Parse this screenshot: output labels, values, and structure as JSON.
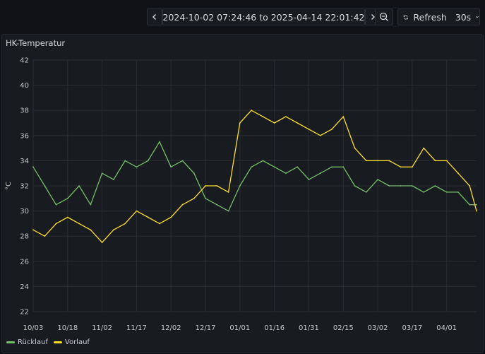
{
  "toolbar": {
    "time_range": "2024-10-02 07:24:46 to 2025-04-14 22:01:42",
    "refresh_label": "Refresh",
    "interval": "30s"
  },
  "panel": {
    "title": "HK-Temperatur"
  },
  "colors": {
    "ruecklauf": "#73bf69",
    "vorlauf": "#fade2a",
    "grid": "#2a2d33",
    "tick": "#c7c7c7"
  },
  "chart_data": {
    "type": "line",
    "title": "HK-Temperatur",
    "xlabel": "",
    "ylabel": "°C",
    "ylim": [
      22,
      42
    ],
    "yticks": [
      "22",
      "24",
      "26",
      "28",
      "30",
      "32",
      "34",
      "36",
      "38",
      "40",
      "42"
    ],
    "xticks": [
      "10/03",
      "10/18",
      "11/02",
      "11/17",
      "12/02",
      "12/17",
      "01/01",
      "01/16",
      "01/31",
      "02/15",
      "03/02",
      "03/17",
      "04/01"
    ],
    "x_domain": [
      "10/03",
      "04/14"
    ],
    "x": [
      "10/03",
      "10/08",
      "10/13",
      "10/18",
      "10/23",
      "10/28",
      "11/02",
      "11/07",
      "11/12",
      "11/17",
      "11/22",
      "11/27",
      "12/02",
      "12/07",
      "12/12",
      "12/17",
      "12/22",
      "12/27",
      "01/01",
      "01/06",
      "01/11",
      "01/16",
      "01/21",
      "01/26",
      "01/31",
      "02/05",
      "02/10",
      "02/15",
      "02/20",
      "02/25",
      "03/02",
      "03/07",
      "03/12",
      "03/17",
      "03/22",
      "03/27",
      "04/01",
      "04/06",
      "04/11",
      "04/14"
    ],
    "series": [
      {
        "name": "Rücklauf",
        "values": [
          33.5,
          32,
          30.5,
          31,
          32,
          30.5,
          33,
          32.5,
          34,
          33.5,
          34,
          35.5,
          33.5,
          34,
          33,
          31,
          30.5,
          30,
          32,
          33.5,
          34,
          33.5,
          33,
          33.5,
          32.5,
          33,
          33.5,
          33.5,
          32,
          31.5,
          32.5,
          32,
          32,
          32,
          31.5,
          32,
          31.5,
          31.5,
          30.5,
          30.5
        ]
      },
      {
        "name": "Vorlauf",
        "values": [
          28.5,
          28,
          29,
          29.5,
          29,
          28.5,
          27.5,
          28.5,
          29,
          30,
          29.5,
          29,
          29.5,
          30.5,
          31,
          32,
          32,
          31.5,
          37,
          38,
          37.5,
          37,
          37.5,
          37,
          36.5,
          36,
          36.5,
          37.5,
          35,
          34,
          34,
          34,
          33.5,
          33.5,
          35,
          34,
          34,
          33,
          32,
          30
        ]
      }
    ],
    "grid": true,
    "legend": "bottom-left"
  }
}
